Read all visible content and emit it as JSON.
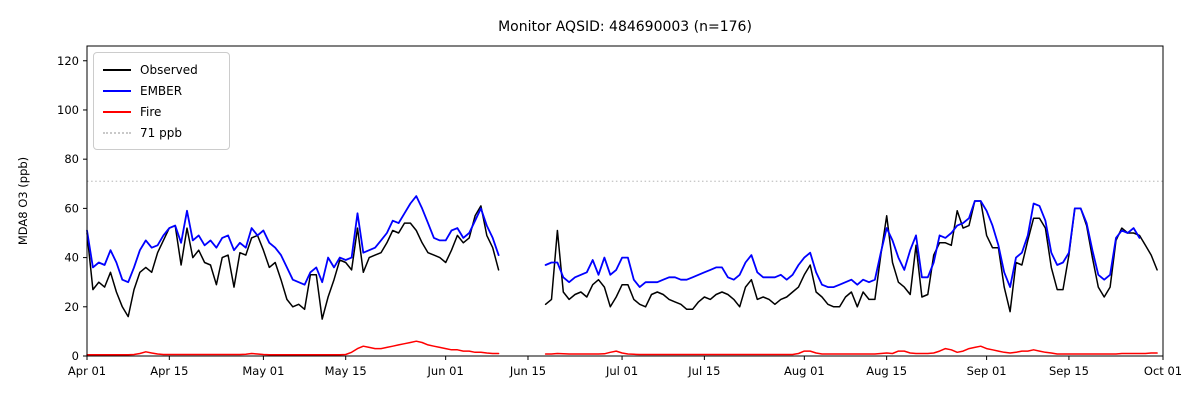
{
  "chart_data": {
    "type": "line",
    "title": "Monitor AQSID: 484690003 (n=176)",
    "ylabel": "MDA8 O3 (ppb)",
    "xlabel": "",
    "ylim": [
      0,
      126
    ],
    "y_ticks": [
      0,
      20,
      40,
      60,
      80,
      100,
      120
    ],
    "x_total_days": 183,
    "x_ticks": [
      {
        "day": 0,
        "label": "Apr 01"
      },
      {
        "day": 14,
        "label": "Apr 15"
      },
      {
        "day": 30,
        "label": "May 01"
      },
      {
        "day": 44,
        "label": "May 15"
      },
      {
        "day": 61,
        "label": "Jun 01"
      },
      {
        "day": 75,
        "label": "Jun 15"
      },
      {
        "day": 91,
        "label": "Jul 01"
      },
      {
        "day": 105,
        "label": "Jul 15"
      },
      {
        "day": 122,
        "label": "Aug 01"
      },
      {
        "day": 136,
        "label": "Aug 15"
      },
      {
        "day": 153,
        "label": "Sep 01"
      },
      {
        "day": 167,
        "label": "Sep 15"
      },
      {
        "day": 183,
        "label": "Oct 01"
      }
    ],
    "grid": false,
    "legend_position": "upper-left",
    "threshold": {
      "value": 71,
      "label": "71 ppb",
      "color": "#c9c9c9",
      "style": "dotted"
    },
    "series": [
      {
        "name": "Observed",
        "color": "#000000",
        "width": 1.5,
        "values": [
          50,
          27,
          30,
          28,
          34,
          26,
          20,
          16,
          27,
          34,
          36,
          34,
          42,
          47,
          52,
          53,
          37,
          52,
          40,
          43,
          38,
          37,
          29,
          40,
          41,
          28,
          42,
          41,
          48,
          49,
          43,
          36,
          38,
          31,
          23,
          20,
          21,
          19,
          33,
          33,
          15,
          24,
          31,
          39,
          38,
          35,
          52,
          34,
          40,
          41,
          42,
          46,
          51,
          50,
          54,
          54,
          51,
          46,
          42,
          41,
          40,
          38,
          43,
          49,
          46,
          48,
          57,
          61,
          49,
          44,
          35,
          null,
          null,
          null,
          null,
          null,
          null,
          null,
          21,
          23,
          51,
          26,
          23,
          25,
          26,
          24,
          29,
          31,
          28,
          20,
          24,
          29,
          29,
          23,
          21,
          20,
          25,
          26,
          25,
          23,
          22,
          21,
          19,
          19,
          22,
          24,
          23,
          25,
          26,
          25,
          23,
          20,
          28,
          31,
          23,
          24,
          23,
          21,
          23,
          24,
          26,
          28,
          33,
          37,
          26,
          24,
          21,
          20,
          20,
          24,
          26,
          20,
          26,
          23,
          23,
          41,
          57,
          38,
          30,
          28,
          25,
          45,
          24,
          25,
          41,
          46,
          46,
          45,
          59,
          52,
          53,
          63,
          63,
          49,
          44,
          44,
          28,
          18,
          38,
          37,
          47,
          56,
          56,
          52,
          36,
          27,
          27,
          41,
          60,
          60,
          53,
          40,
          28,
          24,
          28,
          47,
          52,
          50,
          50,
          49,
          45,
          41,
          35
        ]
      },
      {
        "name": "EMBER",
        "color": "#0000ff",
        "width": 1.8,
        "values": [
          51,
          36,
          38,
          37,
          43,
          38,
          31,
          30,
          36,
          43,
          47,
          44,
          45,
          49,
          52,
          53,
          46,
          59,
          47,
          49,
          45,
          47,
          44,
          48,
          49,
          43,
          46,
          44,
          52,
          49,
          51,
          46,
          44,
          41,
          36,
          31,
          30,
          29,
          34,
          36,
          30,
          40,
          36,
          40,
          39,
          40,
          58,
          42,
          43,
          44,
          47,
          50,
          55,
          54,
          58,
          62,
          65,
          60,
          54,
          48,
          47,
          47,
          51,
          52,
          48,
          50,
          55,
          60,
          53,
          48,
          41,
          null,
          null,
          null,
          null,
          null,
          null,
          null,
          37,
          38,
          38,
          32,
          30,
          32,
          33,
          34,
          39,
          33,
          40,
          33,
          35,
          40,
          40,
          31,
          28,
          30,
          30,
          30,
          31,
          32,
          32,
          31,
          31,
          32,
          33,
          34,
          35,
          36,
          36,
          32,
          31,
          33,
          38,
          41,
          34,
          32,
          32,
          32,
          33,
          31,
          33,
          37,
          40,
          42,
          34,
          29,
          28,
          28,
          29,
          30,
          31,
          29,
          31,
          30,
          31,
          42,
          52,
          47,
          40,
          35,
          43,
          49,
          32,
          32,
          38,
          49,
          48,
          50,
          53,
          54,
          56,
          63,
          63,
          59,
          53,
          45,
          34,
          28,
          40,
          42,
          49,
          62,
          61,
          55,
          42,
          37,
          38,
          42,
          60,
          60,
          54,
          43,
          33,
          31,
          33,
          48,
          51,
          50,
          52,
          48,
          null,
          null,
          null
        ]
      },
      {
        "name": "Fire",
        "color": "#ff0000",
        "width": 1.5,
        "values": [
          0.5,
          0.5,
          0.5,
          0.5,
          0.5,
          0.5,
          0.5,
          0.5,
          0.6,
          1.0,
          1.7,
          1.2,
          0.8,
          0.6,
          0.6,
          0.6,
          0.6,
          0.6,
          0.6,
          0.6,
          0.6,
          0.6,
          0.6,
          0.6,
          0.6,
          0.6,
          0.6,
          0.7,
          1.0,
          0.8,
          0.6,
          0.5,
          0.5,
          0.5,
          0.5,
          0.5,
          0.5,
          0.5,
          0.5,
          0.5,
          0.5,
          0.5,
          0.5,
          0.5,
          0.6,
          1.5,
          3.0,
          4.0,
          3.5,
          3.0,
          3.0,
          3.5,
          4.0,
          4.5,
          5.0,
          5.5,
          6.0,
          5.5,
          4.5,
          4.0,
          3.5,
          3.0,
          2.5,
          2.5,
          2.0,
          2.0,
          1.5,
          1.5,
          1.2,
          1.0,
          1.0,
          null,
          null,
          null,
          null,
          null,
          null,
          null,
          0.8,
          0.8,
          1.0,
          0.9,
          0.8,
          0.8,
          0.8,
          0.8,
          0.8,
          0.8,
          0.9,
          1.5,
          2.0,
          1.2,
          0.8,
          0.7,
          0.6,
          0.6,
          0.6,
          0.6,
          0.6,
          0.6,
          0.6,
          0.6,
          0.6,
          0.6,
          0.6,
          0.6,
          0.6,
          0.6,
          0.6,
          0.6,
          0.6,
          0.6,
          0.6,
          0.6,
          0.6,
          0.6,
          0.6,
          0.6,
          0.6,
          0.6,
          0.6,
          1.0,
          2.0,
          2.0,
          1.2,
          0.8,
          0.8,
          0.8,
          0.8,
          0.8,
          0.8,
          0.8,
          0.8,
          0.8,
          0.8,
          1.0,
          1.2,
          1.0,
          2.0,
          2.0,
          1.2,
          1.0,
          1.0,
          1.0,
          1.2,
          2.0,
          3.0,
          2.5,
          1.5,
          2.0,
          3.0,
          3.5,
          4.0,
          3.0,
          2.5,
          2.0,
          1.5,
          1.2,
          1.5,
          2.0,
          2.0,
          2.5,
          2.0,
          1.5,
          1.2,
          0.8,
          0.8,
          0.8,
          0.8,
          0.8,
          0.8,
          0.8,
          0.8,
          0.8,
          0.8,
          0.8,
          1.0,
          1.0,
          1.0,
          1.0,
          1.0,
          1.2,
          1.2
        ]
      }
    ]
  }
}
